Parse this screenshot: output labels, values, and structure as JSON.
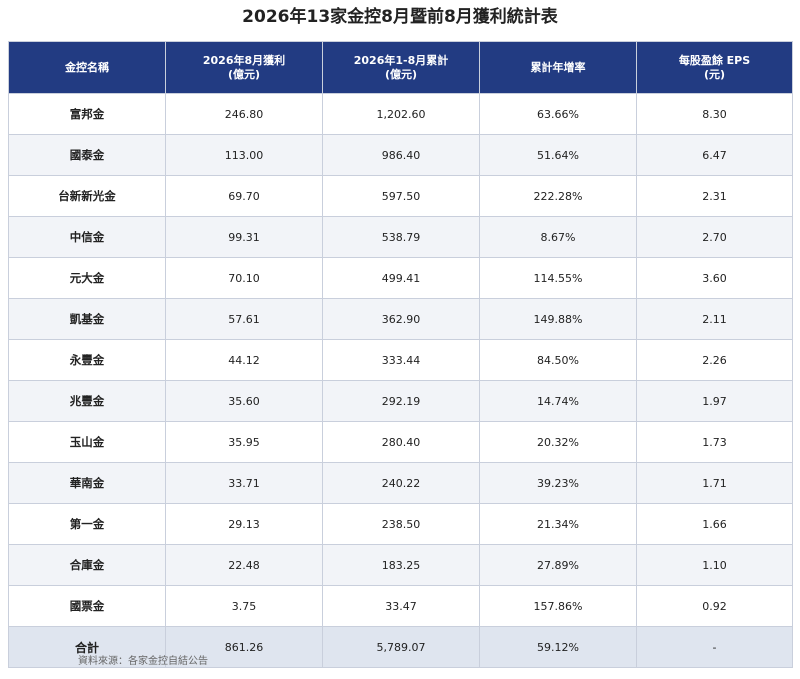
{
  "title": "2026年13家金控8月暨前8月獲利統計表",
  "headers": [
    {
      "line1": "金控名稱",
      "line2": ""
    },
    {
      "line1": "2026年8月獲利",
      "line2": "(億元)"
    },
    {
      "line1": "2026年1-8月累計",
      "line2": "(億元)"
    },
    {
      "line1": "累計年增率",
      "line2": ""
    },
    {
      "line1": "每股盈餘 EPS",
      "line2": "(元)"
    }
  ],
  "rows": [
    {
      "name": "富邦金",
      "aug": "246.80",
      "ytd": "1,202.60",
      "yoy": "63.66%",
      "eps": "8.30"
    },
    {
      "name": "國泰金",
      "aug": "113.00",
      "ytd": "986.40",
      "yoy": "51.64%",
      "eps": "6.47"
    },
    {
      "name": "台新新光金",
      "aug": "69.70",
      "ytd": "597.50",
      "yoy": "222.28%",
      "eps": "2.31"
    },
    {
      "name": "中信金",
      "aug": "99.31",
      "ytd": "538.79",
      "yoy": "8.67%",
      "eps": "2.70"
    },
    {
      "name": "元大金",
      "aug": "70.10",
      "ytd": "499.41",
      "yoy": "114.55%",
      "eps": "3.60"
    },
    {
      "name": "凱基金",
      "aug": "57.61",
      "ytd": "362.90",
      "yoy": "149.88%",
      "eps": "2.11"
    },
    {
      "name": "永豐金",
      "aug": "44.12",
      "ytd": "333.44",
      "yoy": "84.50%",
      "eps": "2.26"
    },
    {
      "name": "兆豐金",
      "aug": "35.60",
      "ytd": "292.19",
      "yoy": "14.74%",
      "eps": "1.97"
    },
    {
      "name": "玉山金",
      "aug": "35.95",
      "ytd": "280.40",
      "yoy": "20.32%",
      "eps": "1.73"
    },
    {
      "name": "華南金",
      "aug": "33.71",
      "ytd": "240.22",
      "yoy": "39.23%",
      "eps": "1.71"
    },
    {
      "name": "第一金",
      "aug": "29.13",
      "ytd": "238.50",
      "yoy": "21.34%",
      "eps": "1.66"
    },
    {
      "name": "合庫金",
      "aug": "22.48",
      "ytd": "183.25",
      "yoy": "27.89%",
      "eps": "1.10"
    },
    {
      "name": "國票金",
      "aug": "3.75",
      "ytd": "33.47",
      "yoy": "157.86%",
      "eps": "0.92"
    }
  ],
  "total": {
    "name": "合計",
    "aug": "861.26",
    "ytd": "5,789.07",
    "yoy": "59.12%",
    "eps": "-"
  },
  "source": "資料來源：各家金控自結公告",
  "colors": {
    "header_bg": "#223b82",
    "header_text": "#ffffff",
    "total_bg": "#dfe5ef",
    "stripe_bg": "#f2f4f8"
  }
}
